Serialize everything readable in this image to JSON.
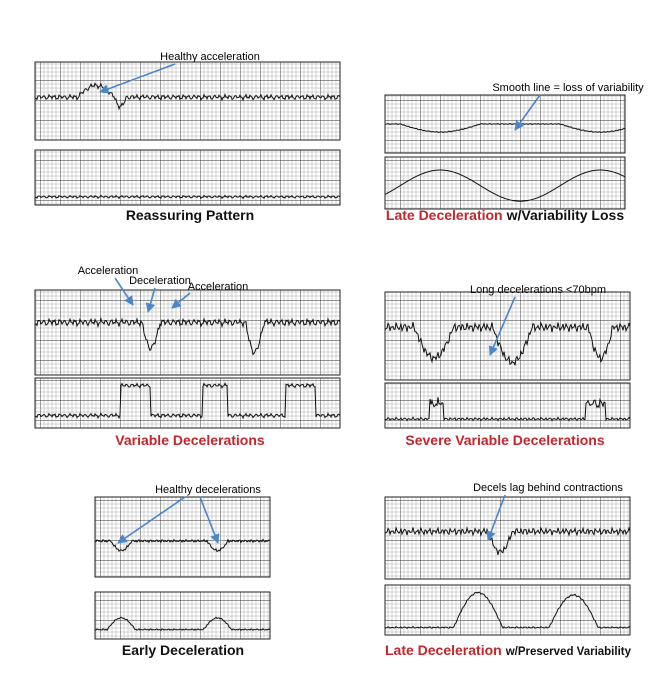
{
  "panels": [
    {
      "caption": [
        "Reassuring Pattern"
      ],
      "annotations": [
        "Healthy acceleration"
      ]
    },
    {
      "caption": [
        "Late Deceleration",
        "w/Variability Loss"
      ],
      "annotations": [
        "Smooth line = loss of variability"
      ]
    },
    {
      "caption": [
        "Variable Decelerations"
      ],
      "annotations": [
        "Acceleration",
        "Deceleration",
        "Acceleration"
      ]
    },
    {
      "caption": [
        "Severe Variable Decelerations"
      ],
      "annotations": [
        "Long decelerations <70bpm"
      ]
    },
    {
      "caption": [
        "Early Deceleration"
      ],
      "annotations": [
        "Healthy decelerations"
      ]
    },
    {
      "caption": [
        "Late Deceleration",
        "w/Preserved Variability"
      ],
      "annotations": [
        "Decels lag behind contractions"
      ]
    }
  ]
}
